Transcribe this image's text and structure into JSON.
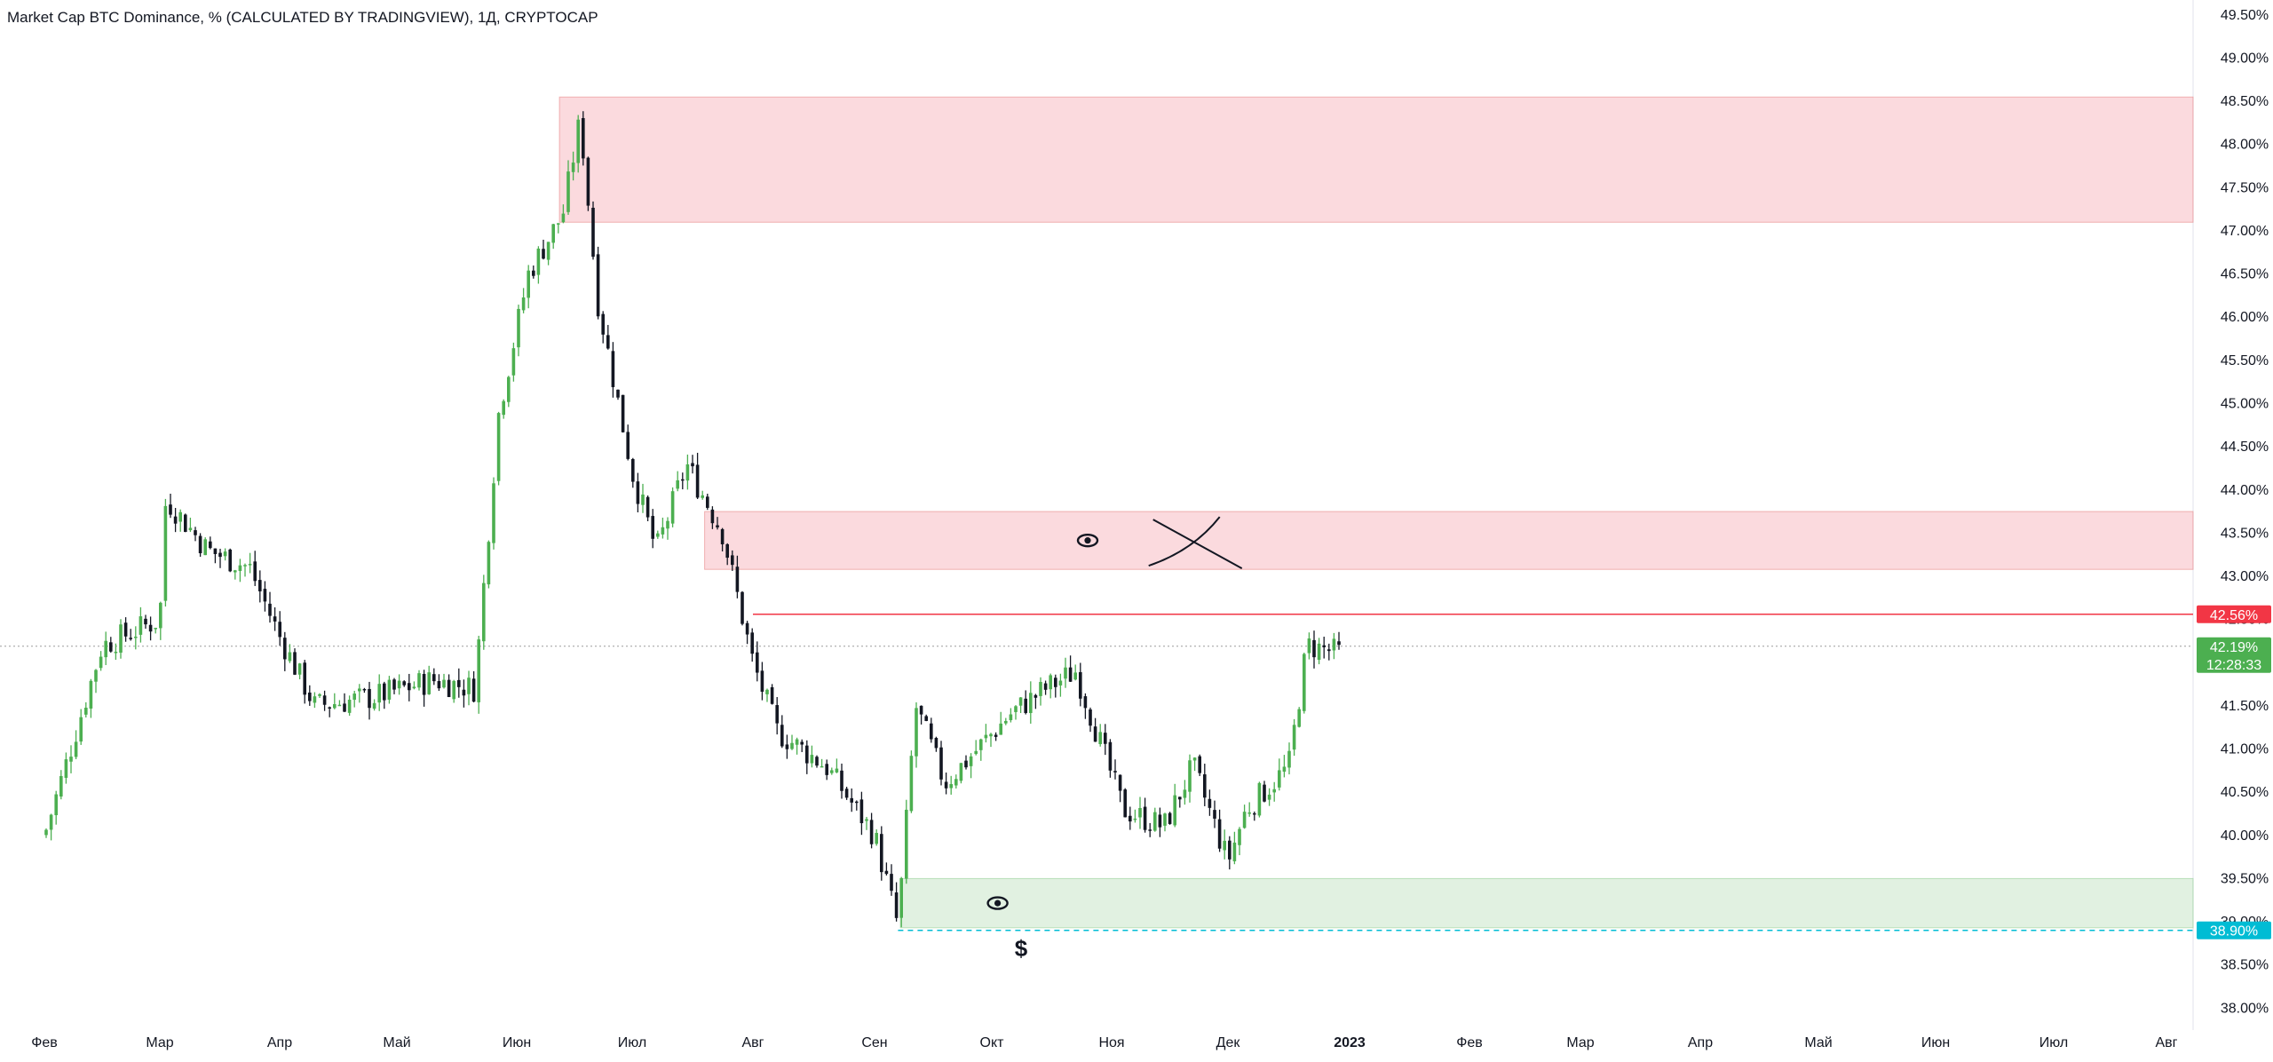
{
  "chart_data": {
    "type": "candlestick",
    "title": "Market Cap BTC Dominance, % (CALCULATED BY TRADINGVIEW), 1Д, CRYPTOCAP",
    "xlabel": "",
    "ylabel": "",
    "ylim": [
      37.9,
      49.55
    ],
    "x_tick_labels": [
      "Фев",
      "Мар",
      "Апр",
      "Май",
      "Июн",
      "Июл",
      "Авг",
      "Сен",
      "Окт",
      "Ноя",
      "Дек",
      "2023",
      "Фев",
      "Мар",
      "Апр",
      "Май",
      "Июн",
      "Июл",
      "Авг"
    ],
    "y_ticks": [
      38.0,
      38.5,
      39.0,
      39.5,
      40.0,
      40.5,
      41.0,
      41.5,
      42.0,
      42.5,
      43.0,
      43.5,
      44.0,
      44.5,
      45.0,
      45.5,
      46.0,
      46.5,
      47.0,
      47.5,
      48.0,
      48.5,
      49.0,
      49.5
    ],
    "y_tick_suffix": "%",
    "grid": false,
    "colors": {
      "up": "#26a69a",
      "up_wick": "#4caf50",
      "down": "#131722",
      "supply_zone": "#f8bbc2",
      "demand_zone": "#c8e6c9",
      "resistance_line": "#f23645",
      "support_line": "#00bcd4",
      "last_price": "#4caf50"
    },
    "price_path_anchors": [
      {
        "month": "Фев",
        "pos": 0.0,
        "value": 40.0
      },
      {
        "month": "Фев",
        "pos": 0.5,
        "value": 42.2
      },
      {
        "month": "Мар",
        "pos": 0.0,
        "value": 42.5
      },
      {
        "month": "Мар",
        "pos": 0.05,
        "value": 43.9
      },
      {
        "month": "Мар",
        "pos": 0.4,
        "value": 43.3
      },
      {
        "month": "Мар",
        "pos": 0.75,
        "value": 43.1
      },
      {
        "month": "Мар",
        "pos": 1.0,
        "value": 42.3
      },
      {
        "month": "Апр",
        "pos": 0.3,
        "value": 41.5
      },
      {
        "month": "Апр",
        "pos": 0.8,
        "value": 41.6
      },
      {
        "month": "Май",
        "pos": 0.3,
        "value": 41.8
      },
      {
        "month": "Май",
        "pos": 0.65,
        "value": 41.7
      },
      {
        "month": "Май",
        "pos": 0.85,
        "value": 44.9
      },
      {
        "month": "Июн",
        "pos": 0.1,
        "value": 46.5
      },
      {
        "month": "Июн",
        "pos": 0.4,
        "value": 47.2
      },
      {
        "month": "Июн",
        "pos": 0.55,
        "value": 48.3
      },
      {
        "month": "Июн",
        "pos": 0.7,
        "value": 46.2
      },
      {
        "month": "Июн",
        "pos": 1.0,
        "value": 44.2
      },
      {
        "month": "Июл",
        "pos": 0.2,
        "value": 43.3
      },
      {
        "month": "Июл",
        "pos": 0.45,
        "value": 44.3
      },
      {
        "month": "Июл",
        "pos": 0.75,
        "value": 43.5
      },
      {
        "month": "Авг",
        "pos": 0.0,
        "value": 42.0
      },
      {
        "month": "Авг",
        "pos": 0.2,
        "value": 41.2
      },
      {
        "month": "Авг",
        "pos": 0.6,
        "value": 40.8
      },
      {
        "month": "Сен",
        "pos": 0.0,
        "value": 40.0
      },
      {
        "month": "Сен",
        "pos": 0.2,
        "value": 38.95
      },
      {
        "month": "Сен",
        "pos": 0.35,
        "value": 41.5
      },
      {
        "month": "Сен",
        "pos": 0.6,
        "value": 40.6
      },
      {
        "month": "Окт",
        "pos": 0.15,
        "value": 41.4
      },
      {
        "month": "Окт",
        "pos": 0.45,
        "value": 41.7
      },
      {
        "month": "Окт",
        "pos": 0.7,
        "value": 41.9
      },
      {
        "month": "Ноя",
        "pos": 0.1,
        "value": 40.3
      },
      {
        "month": "Ноя",
        "pos": 0.45,
        "value": 40.1
      },
      {
        "month": "Ноя",
        "pos": 0.7,
        "value": 40.8
      },
      {
        "month": "Дек",
        "pos": 0.0,
        "value": 39.7
      },
      {
        "month": "Дек",
        "pos": 0.15,
        "value": 40.3
      },
      {
        "month": "Дек",
        "pos": 0.5,
        "value": 40.8
      },
      {
        "month": "Дек",
        "pos": 0.65,
        "value": 42.2
      },
      {
        "month": "Дек",
        "pos": 0.95,
        "value": 42.1
      }
    ],
    "zones": [
      {
        "kind": "supply",
        "from": {
          "month": "Июн",
          "pos": 0.37
        },
        "top": 48.55,
        "bottom": 47.1
      },
      {
        "kind": "supply",
        "from": {
          "month": "Июл",
          "pos": 0.6
        },
        "top": 43.75,
        "bottom": 43.08,
        "icon": "eye-icon",
        "icon_at": {
          "month": "Окт",
          "pos": 0.8
        }
      },
      {
        "kind": "demand",
        "from": {
          "month": "Сен",
          "pos": 0.22
        },
        "top": 39.5,
        "bottom": 38.93,
        "icon": "eye-icon",
        "icon_at": {
          "month": "Сен",
          "pos": 1.05
        }
      }
    ],
    "annotations": [
      {
        "kind": "cross",
        "label": "",
        "at": {
          "month": "Ноя",
          "pos": 0.7
        },
        "value": 43.4
      },
      {
        "kind": "text",
        "label": "$",
        "at": {
          "month": "Сен",
          "pos": 1.25
        },
        "value": 38.7
      }
    ],
    "lines": [
      {
        "name": "resistance",
        "value": 42.56,
        "label": "42.56%",
        "from": {
          "month": "Авг",
          "pos": 0.0
        }
      },
      {
        "name": "support",
        "value": 38.9,
        "label": "38.90%",
        "from": {
          "month": "Сен",
          "pos": 0.2
        },
        "style": "dashed"
      },
      {
        "name": "last",
        "value": 42.19,
        "label": "42.19%",
        "countdown": "12:28:33",
        "style": "dotted"
      }
    ],
    "last_candle": {
      "month": "Дек",
      "pos": 0.95
    }
  }
}
